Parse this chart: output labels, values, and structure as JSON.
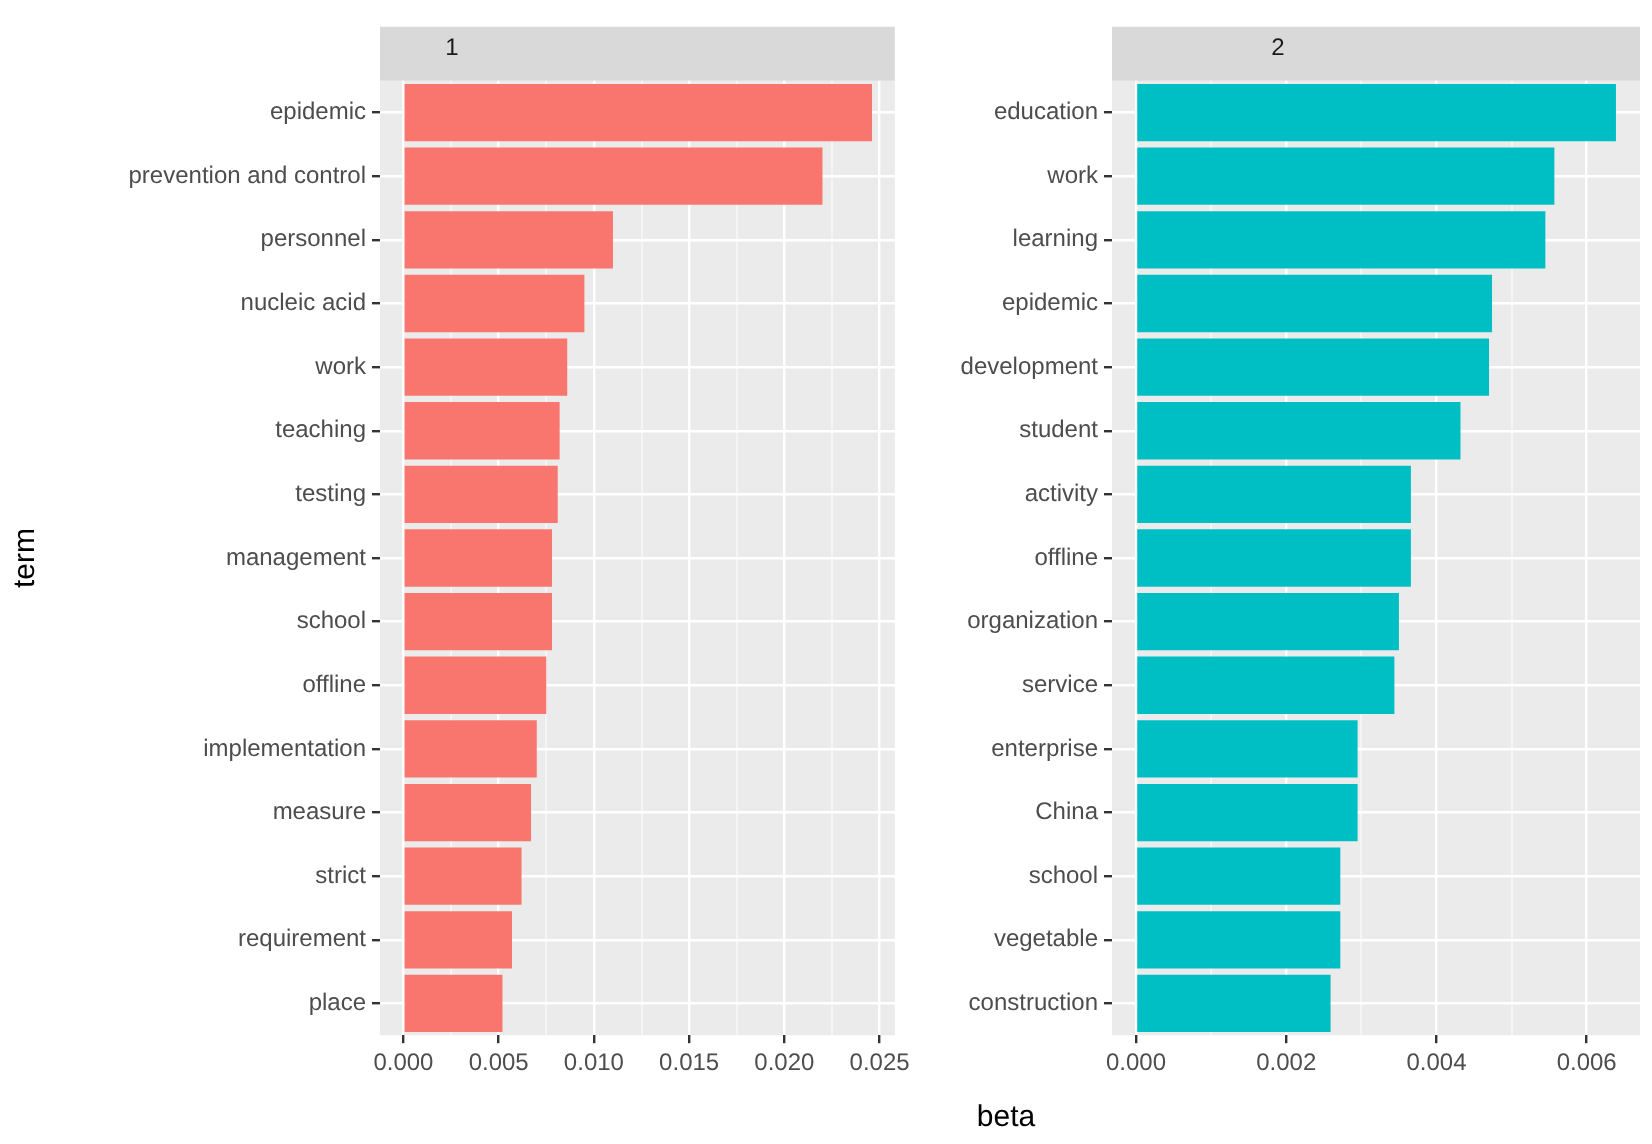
{
  "chart_data": [
    {
      "type": "bar",
      "orientation": "horizontal",
      "title": "1",
      "ylabel": "term",
      "xlabel": "beta",
      "grid": true,
      "legend": false,
      "color": "#f8766d",
      "categories": [
        "epidemic",
        "prevention and control",
        "personnel",
        "nucleic acid",
        "work",
        "teaching",
        "testing",
        "management",
        "school",
        "offline",
        "implementation",
        "measure",
        "strict",
        "requirement",
        "place"
      ],
      "values": [
        0.0246,
        0.022,
        0.011,
        0.0095,
        0.0086,
        0.0082,
        0.0081,
        0.0078,
        0.0078,
        0.0075,
        0.007,
        0.0067,
        0.0062,
        0.0057,
        0.0052
      ],
      "xlim": [
        -0.00123,
        0.0258
      ],
      "xticks": [
        {
          "value": 0,
          "label": "0.000"
        },
        {
          "value": 0.0025,
          "label": null
        },
        {
          "value": 0.005,
          "label": "0.005"
        },
        {
          "value": 0.0075,
          "label": null
        },
        {
          "value": 0.01,
          "label": "0.010"
        },
        {
          "value": 0.0125,
          "label": null
        },
        {
          "value": 0.015,
          "label": "0.015"
        },
        {
          "value": 0.0175,
          "label": null
        },
        {
          "value": 0.02,
          "label": "0.020"
        },
        {
          "value": 0.0225,
          "label": null
        },
        {
          "value": 0.025,
          "label": "0.025"
        }
      ]
    },
    {
      "type": "bar",
      "orientation": "horizontal",
      "title": "2",
      "grid": true,
      "legend": false,
      "color": "#00bfc4",
      "categories": [
        "education",
        "work",
        "learning",
        "epidemic",
        "development",
        "student",
        "activity",
        "offline",
        "organization",
        "service",
        "enterprise",
        "China",
        "school",
        "vegetable",
        "construction"
      ],
      "values": [
        0.00639,
        0.00557,
        0.00545,
        0.00474,
        0.0047,
        0.00432,
        0.00366,
        0.00366,
        0.0035,
        0.00344,
        0.00295,
        0.00295,
        0.00272,
        0.00272,
        0.00259
      ],
      "xlim": [
        -0.00032,
        0.00671
      ],
      "xticks": [
        {
          "value": 0,
          "label": "0.000"
        },
        {
          "value": 0.001,
          "label": null
        },
        {
          "value": 0.002,
          "label": "0.002"
        },
        {
          "value": 0.003,
          "label": null
        },
        {
          "value": 0.004,
          "label": "0.004"
        },
        {
          "value": 0.005,
          "label": null
        },
        {
          "value": 0.006,
          "label": "0.006"
        }
      ]
    }
  ]
}
